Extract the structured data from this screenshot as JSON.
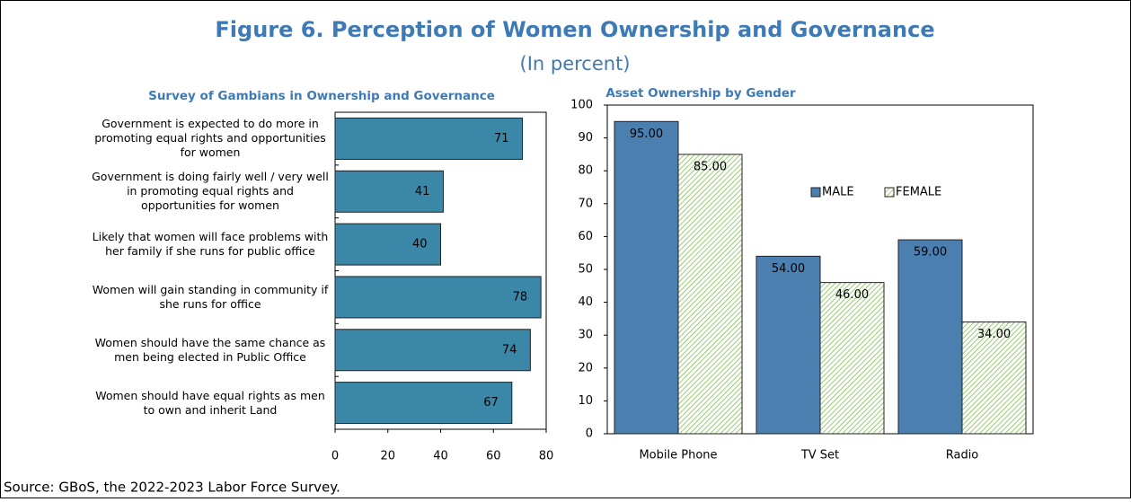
{
  "figure": {
    "title": "Figure 6. Perception of Women Ownership and Governance",
    "subtitle": "(In percent)",
    "source": "Source: GBoS, the 2022-2023 Labor Force Survey."
  },
  "chart_data": [
    {
      "type": "hbar",
      "title": "Survey of Gambians in Ownership and Governance",
      "categories": [
        "Government is expected to do more in promoting equal rights and opportunities for women",
        "Government is doing  fairly well / very well in promoting equal rights and opportunities for women",
        "Likely that women will face problems with her family if she runs for public office",
        "Women will gain standing in community if she runs for office",
        "Women should have the same chance as men being elected  in Public Office",
        "Women should have equal rights as men to own and inherit Land"
      ],
      "values": [
        71,
        41,
        40,
        78,
        74,
        67
      ],
      "color": "#3b87a7",
      "xlim": [
        0,
        80
      ],
      "xticks": [
        0,
        20,
        40,
        60,
        80
      ]
    },
    {
      "type": "bar",
      "title": "Asset Ownership by Gender",
      "categories": [
        "Mobile Phone",
        "TV Set",
        "Radio"
      ],
      "series": [
        {
          "name": "MALE",
          "color": "#4a7fb0",
          "values": [
            95,
            54,
            59
          ],
          "value_labels": [
            "95.00",
            "54.00",
            "59.00"
          ]
        },
        {
          "name": "FEMALE",
          "color": "#7fbf4f",
          "pattern": "hatch",
          "values": [
            85,
            46,
            34
          ],
          "value_labels": [
            "85.00",
            "46.00",
            "34.00"
          ]
        }
      ],
      "ylim": [
        0,
        100
      ],
      "yticks": [
        0,
        10,
        20,
        30,
        40,
        50,
        60,
        70,
        80,
        90,
        100
      ],
      "legend": "center"
    }
  ]
}
